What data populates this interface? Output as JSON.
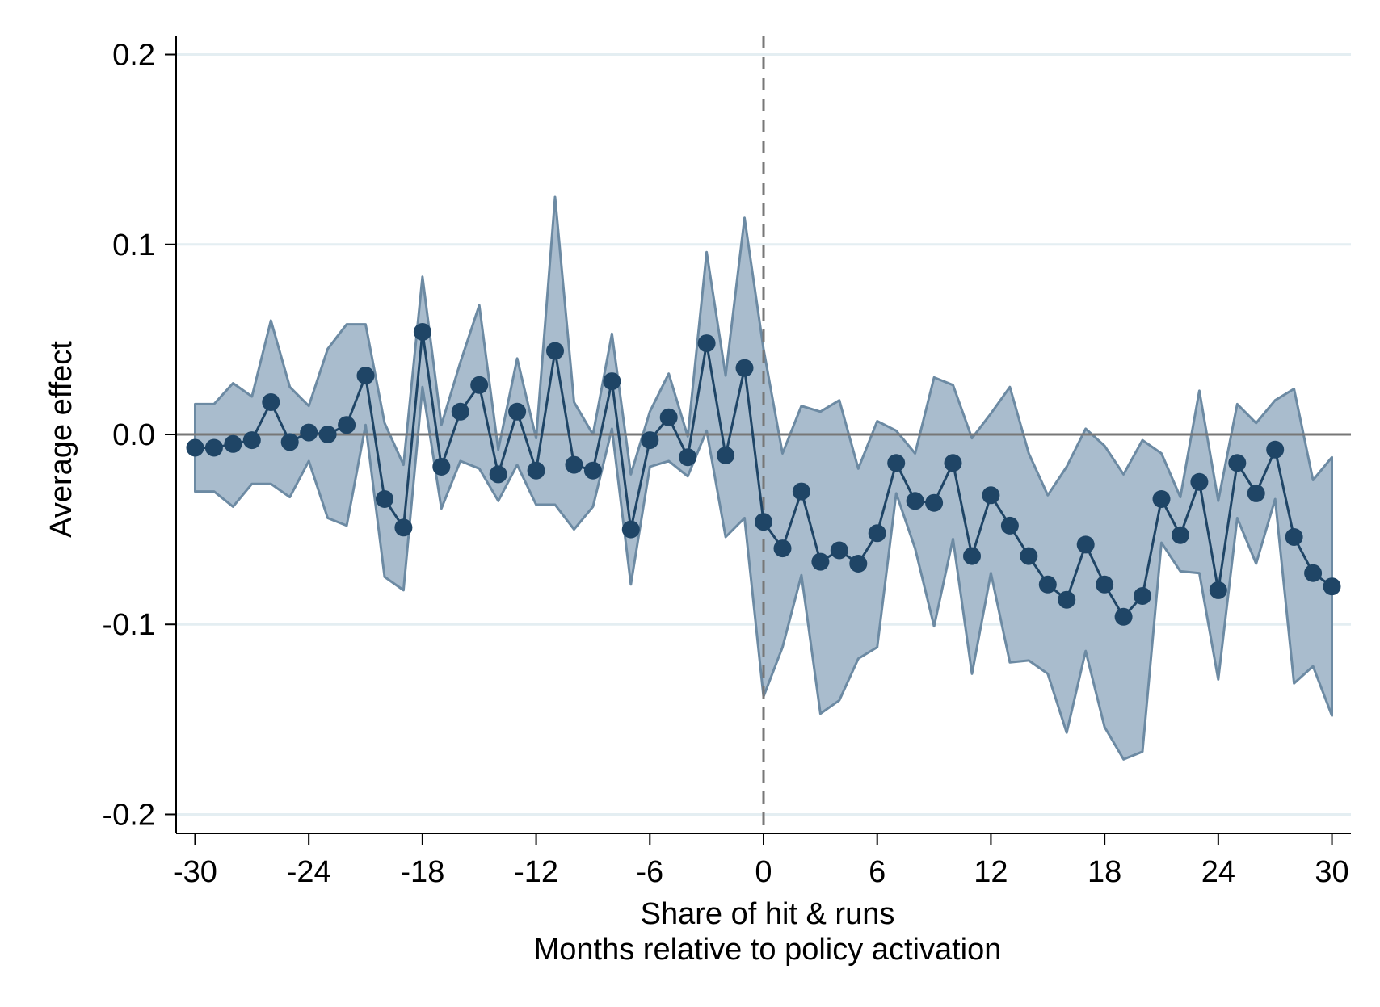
{
  "chart_data": {
    "type": "line",
    "ylabel": "Average effect",
    "xlabel_lines": [
      "Share of hit & runs",
      "Months relative to policy activation"
    ],
    "xlim": [
      -31,
      31
    ],
    "ylim": [
      -0.21,
      0.21
    ],
    "x_ticks": [
      -30,
      -24,
      -18,
      -12,
      -6,
      0,
      6,
      12,
      18,
      24,
      30
    ],
    "x_tick_labels": [
      "-30",
      "-24",
      "-18",
      "-12",
      "-6",
      "0",
      "6",
      "12",
      "18",
      "24",
      "30"
    ],
    "y_ticks": [
      -0.2,
      -0.1,
      0.0,
      0.1,
      0.2
    ],
    "y_tick_labels": [
      "-0.2",
      "-0.1",
      "0.0",
      "0.1",
      "0.2"
    ],
    "grid": true,
    "zero_line": 0.0,
    "event_line_x": 0,
    "colors": {
      "series": "#1f4566",
      "band_fill": "#a9bccd",
      "band_edge": "#6c8aa3",
      "grid": "#e4eef2",
      "zero": "#777777",
      "event": "#777777"
    },
    "series": [
      {
        "x": [
          -30,
          -29,
          -28,
          -27,
          -26,
          -25,
          -24,
          -23,
          -22,
          -21,
          -20,
          -19,
          -18,
          -17,
          -16,
          -15,
          -14,
          -13,
          -12,
          -11,
          -10,
          -9,
          -8,
          -7,
          -6,
          -5,
          -4,
          -3,
          -2,
          -1,
          0,
          1,
          2,
          3,
          4,
          5,
          6,
          7,
          8,
          9,
          10,
          11,
          12,
          13,
          14,
          15,
          16,
          17,
          18,
          19,
          20,
          21,
          22,
          23,
          24,
          25,
          26,
          27,
          28,
          29,
          30
        ],
        "y": [
          -0.007,
          -0.007,
          -0.005,
          -0.003,
          0.017,
          -0.004,
          0.001,
          0.0,
          0.005,
          0.031,
          -0.034,
          -0.049,
          0.054,
          -0.017,
          0.012,
          0.026,
          -0.021,
          0.012,
          -0.019,
          0.044,
          -0.016,
          -0.019,
          0.028,
          -0.05,
          -0.003,
          0.009,
          -0.012,
          0.048,
          -0.011,
          0.035,
          -0.046,
          -0.06,
          -0.03,
          -0.067,
          -0.061,
          -0.068,
          -0.052,
          -0.015,
          -0.035,
          -0.036,
          -0.015,
          -0.064,
          -0.032,
          -0.048,
          -0.064,
          -0.079,
          -0.087,
          -0.058,
          -0.079,
          -0.096,
          -0.085,
          -0.034,
          -0.053,
          -0.025,
          -0.082,
          -0.015,
          -0.031,
          -0.008,
          -0.054,
          -0.073,
          -0.08
        ],
        "ci_upper": [
          0.016,
          0.016,
          0.027,
          0.02,
          0.06,
          0.025,
          0.015,
          0.045,
          0.058,
          0.058,
          0.006,
          -0.016,
          0.083,
          0.005,
          0.038,
          0.068,
          -0.008,
          0.04,
          -0.002,
          0.125,
          0.017,
          0.0,
          0.053,
          -0.021,
          0.012,
          0.032,
          -0.001,
          0.096,
          0.031,
          0.114,
          0.045,
          -0.01,
          0.015,
          0.012,
          0.018,
          -0.018,
          0.007,
          0.002,
          -0.01,
          0.03,
          0.026,
          -0.002,
          0.011,
          0.025,
          -0.01,
          -0.032,
          -0.017,
          0.003,
          -0.006,
          -0.021,
          -0.003,
          -0.01,
          -0.033,
          0.023,
          -0.035,
          0.016,
          0.006,
          0.018,
          0.024,
          -0.024,
          -0.012
        ],
        "ci_lower": [
          -0.03,
          -0.03,
          -0.038,
          -0.026,
          -0.026,
          -0.033,
          -0.014,
          -0.044,
          -0.048,
          0.005,
          -0.075,
          -0.082,
          0.025,
          -0.039,
          -0.014,
          -0.018,
          -0.035,
          -0.016,
          -0.037,
          -0.037,
          -0.05,
          -0.038,
          0.003,
          -0.079,
          -0.017,
          -0.014,
          -0.022,
          0.002,
          -0.054,
          -0.044,
          -0.138,
          -0.112,
          -0.074,
          -0.147,
          -0.14,
          -0.118,
          -0.112,
          -0.031,
          -0.06,
          -0.101,
          -0.055,
          -0.126,
          -0.073,
          -0.12,
          -0.119,
          -0.126,
          -0.157,
          -0.114,
          -0.154,
          -0.171,
          -0.167,
          -0.057,
          -0.072,
          -0.073,
          -0.129,
          -0.044,
          -0.068,
          -0.034,
          -0.131,
          -0.122,
          -0.148
        ]
      }
    ]
  }
}
